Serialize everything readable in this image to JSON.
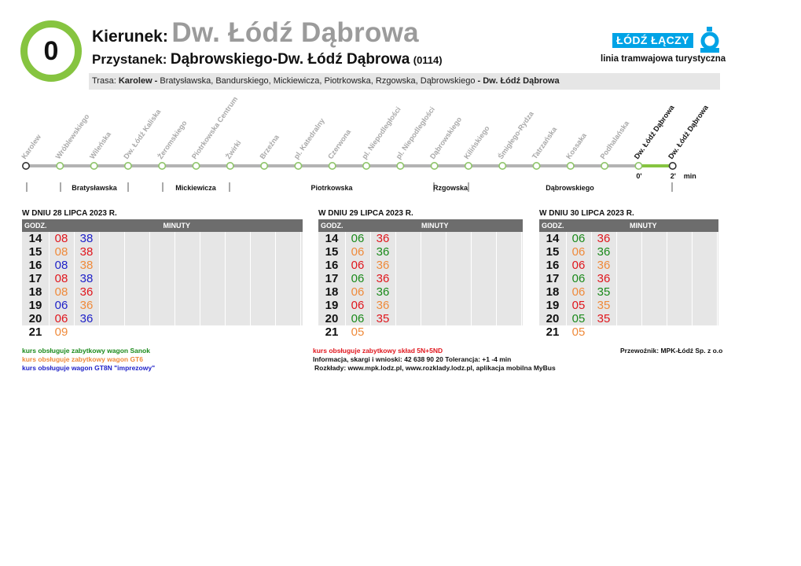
{
  "header": {
    "line_number": "0",
    "direction_label": "Kierunek:",
    "direction_value": "Dw. Łódź Dąbrowa",
    "stop_label": "Przystanek:",
    "stop_value": "Dąbrowskiego-Dw. Łódź Dąbrowa",
    "stop_code": "(0114)"
  },
  "route": {
    "label": "Trasa:",
    "start": "Karolew -",
    "via": "Bratysławska,  Bandurskiego,  Mickiewicza,  Piotrkowska,  Rzgowska,  Dąbrowskiego",
    "end": "- Dw. Łódź Dąbrowa"
  },
  "brand": {
    "name": "ŁÓDŹ ŁĄCZY",
    "subtitle": "linia tramwajowa turystyczna",
    "accent_color": "#00a3e6",
    "line_color": "#86c440"
  },
  "line_diagram": {
    "stops": [
      "Karolew",
      "Wróblewskiego",
      "Wileńska",
      "Dw. Łódź Kaliska",
      "Żeromskiego",
      "Piotrkowska Centrum",
      "Żwirki",
      "Brzeźna",
      "pl. Katedralny",
      "Czerwona",
      "pl. Niepodległości",
      "pl. Niepodległości",
      "Dąbrowskiego",
      "Kilińskiego",
      "Śmigłego-Rydza",
      "Tatrzańska",
      "Kossaka",
      "Podhalańska",
      "Dw. Łódź Dąbrowa",
      "Dw. Łódź Dąbrowa"
    ],
    "current_time": "0'",
    "next_time": "2'",
    "time_unit": "min",
    "streets": [
      "Bratysławska",
      "Mickiewicza",
      "Piotrkowska",
      "Rzgowska",
      "Dąbrowskiego"
    ]
  },
  "timetables": [
    {
      "title": "W DNIU 28 LIPCA 2023 R.",
      "hour_header": "GODZ.",
      "minutes_header": "MINUTY",
      "rows": [
        {
          "hour": "14",
          "minutes": [
            {
              "m": "08",
              "c": "red"
            },
            {
              "m": "38",
              "c": "blue"
            }
          ]
        },
        {
          "hour": "15",
          "minutes": [
            {
              "m": "08",
              "c": "orange"
            },
            {
              "m": "38",
              "c": "red"
            }
          ]
        },
        {
          "hour": "16",
          "minutes": [
            {
              "m": "08",
              "c": "blue"
            },
            {
              "m": "38",
              "c": "orange"
            }
          ]
        },
        {
          "hour": "17",
          "minutes": [
            {
              "m": "08",
              "c": "red"
            },
            {
              "m": "38",
              "c": "blue"
            }
          ]
        },
        {
          "hour": "18",
          "minutes": [
            {
              "m": "08",
              "c": "orange"
            },
            {
              "m": "36",
              "c": "red"
            }
          ]
        },
        {
          "hour": "19",
          "minutes": [
            {
              "m": "06",
              "c": "blue"
            },
            {
              "m": "36",
              "c": "orange"
            }
          ]
        },
        {
          "hour": "20",
          "minutes": [
            {
              "m": "06",
              "c": "red"
            },
            {
              "m": "36",
              "c": "blue"
            }
          ]
        },
        {
          "hour": "21",
          "minutes": [
            {
              "m": "09",
              "c": "orange"
            }
          ]
        }
      ]
    },
    {
      "title": "W DNIU 29 LIPCA 2023 R.",
      "hour_header": "GODZ.",
      "minutes_header": "MINUTY",
      "rows": [
        {
          "hour": "14",
          "minutes": [
            {
              "m": "06",
              "c": "green"
            },
            {
              "m": "36",
              "c": "red"
            }
          ]
        },
        {
          "hour": "15",
          "minutes": [
            {
              "m": "06",
              "c": "orange"
            },
            {
              "m": "36",
              "c": "green"
            }
          ]
        },
        {
          "hour": "16",
          "minutes": [
            {
              "m": "06",
              "c": "red"
            },
            {
              "m": "36",
              "c": "orange"
            }
          ]
        },
        {
          "hour": "17",
          "minutes": [
            {
              "m": "06",
              "c": "green"
            },
            {
              "m": "36",
              "c": "red"
            }
          ]
        },
        {
          "hour": "18",
          "minutes": [
            {
              "m": "06",
              "c": "orange"
            },
            {
              "m": "36",
              "c": "green"
            }
          ]
        },
        {
          "hour": "19",
          "minutes": [
            {
              "m": "06",
              "c": "red"
            },
            {
              "m": "36",
              "c": "orange"
            }
          ]
        },
        {
          "hour": "20",
          "minutes": [
            {
              "m": "06",
              "c": "green"
            },
            {
              "m": "35",
              "c": "red"
            }
          ]
        },
        {
          "hour": "21",
          "minutes": [
            {
              "m": "05",
              "c": "orange"
            }
          ]
        }
      ]
    },
    {
      "title": "W DNIU 30 LIPCA 2023 R.",
      "hour_header": "GODZ.",
      "minutes_header": "MINUTY",
      "rows": [
        {
          "hour": "14",
          "minutes": [
            {
              "m": "06",
              "c": "green"
            },
            {
              "m": "36",
              "c": "red"
            }
          ]
        },
        {
          "hour": "15",
          "minutes": [
            {
              "m": "06",
              "c": "orange"
            },
            {
              "m": "36",
              "c": "green"
            }
          ]
        },
        {
          "hour": "16",
          "minutes": [
            {
              "m": "06",
              "c": "red"
            },
            {
              "m": "36",
              "c": "orange"
            }
          ]
        },
        {
          "hour": "17",
          "minutes": [
            {
              "m": "06",
              "c": "green"
            },
            {
              "m": "36",
              "c": "red"
            }
          ]
        },
        {
          "hour": "18",
          "minutes": [
            {
              "m": "06",
              "c": "orange"
            },
            {
              "m": "35",
              "c": "green"
            }
          ]
        },
        {
          "hour": "19",
          "minutes": [
            {
              "m": "05",
              "c": "red"
            },
            {
              "m": "35",
              "c": "orange"
            }
          ]
        },
        {
          "hour": "20",
          "minutes": [
            {
              "m": "05",
              "c": "green"
            },
            {
              "m": "35",
              "c": "red"
            }
          ]
        },
        {
          "hour": "21",
          "minutes": [
            {
              "m": "05",
              "c": "orange"
            }
          ]
        }
      ]
    }
  ],
  "colors": {
    "green": "#1b8a1b",
    "orange": "#ef8a3a",
    "blue": "#1f22c8",
    "red": "#e0161d"
  },
  "legend": {
    "green": "kurs obsługuje zabytkowy wagon Sanok",
    "orange": "kurs obsługuje zabytkowy wagon GT6",
    "blue": "kurs obsługuje wagon GT8N \"imprezowy\"",
    "red": "kurs obsługuje zabytkowy skład 5N+5ND"
  },
  "info": {
    "contact": "Informacja, skargi i wnioski: 42 638 90 20 Tolerancja: +1 -4 min",
    "schedules": "Rozkłady: www.mpk.lodz.pl, www.rozklady.lodz.pl, aplikacja mobilna MyBus",
    "operator": "Przewoźnik: MPK-Łódź Sp. z o.o"
  }
}
